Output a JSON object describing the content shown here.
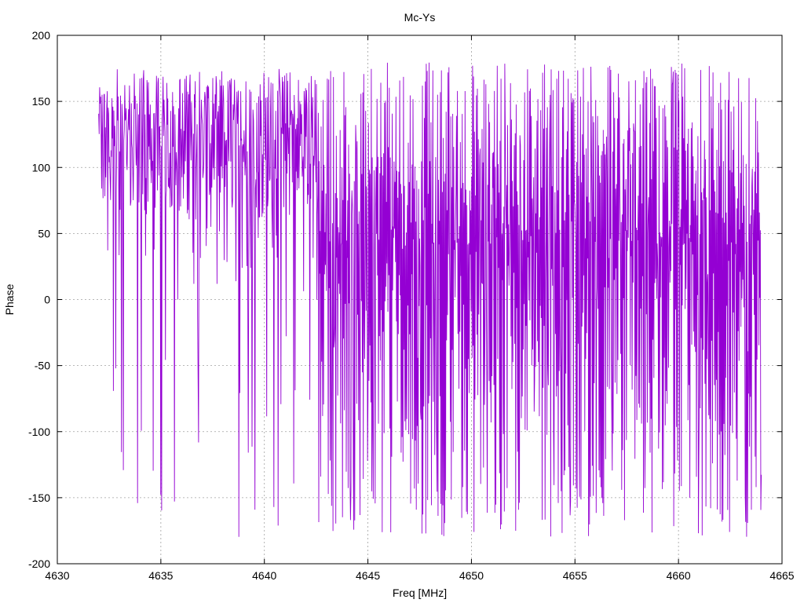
{
  "chart_data": {
    "type": "line",
    "title": "Mc-Ys",
    "xlabel": "Freq [MHz]",
    "ylabel": "Phase",
    "xlim": [
      4630,
      4665
    ],
    "ylim": [
      -200,
      200
    ],
    "xticks": [
      4630,
      4635,
      4640,
      4645,
      4650,
      4655,
      4660,
      4665
    ],
    "yticks": [
      -200,
      -150,
      -100,
      -50,
      0,
      50,
      100,
      150,
      200
    ],
    "grid": true,
    "legend": "none",
    "series": [
      {
        "color": "#9400d3",
        "x_range": [
          4632,
          4664
        ],
        "envelope": [
          {
            "x_from": 4632,
            "x_to": 4642.5,
            "typical_range": [
              0,
              180
            ],
            "occasional_min": -180
          },
          {
            "x_from": 4642.5,
            "x_to": 4652.5,
            "typical_range": [
              -180,
              180
            ]
          },
          {
            "x_from": 4652.5,
            "x_to": 4664,
            "typical_range": [
              -180,
              180
            ]
          }
        ]
      }
    ]
  }
}
